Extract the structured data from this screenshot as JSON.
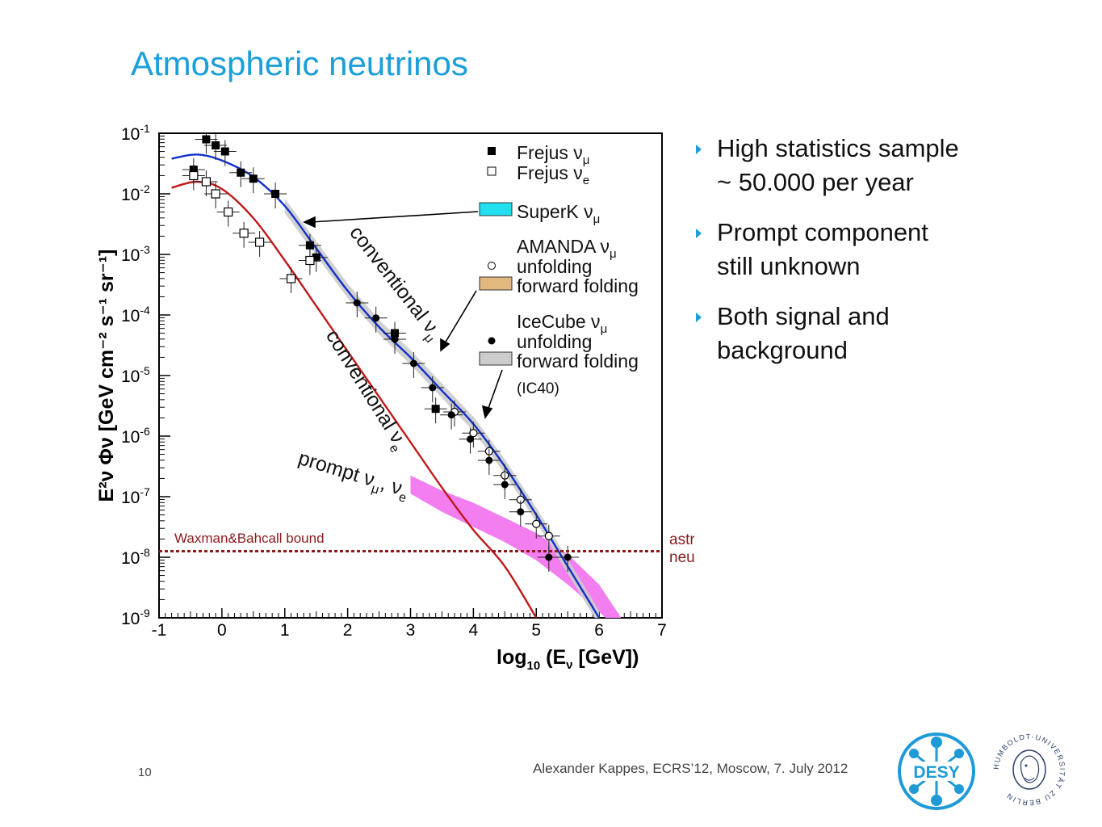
{
  "slide": {
    "title": "Atmospheric neutrinos",
    "page_number": "10",
    "footer": "Alexander Kappes, ECRS’12, Moscow, 7. July 2012",
    "bullets": [
      {
        "lines": [
          "High statistics sample",
          "~ 50.000 per year"
        ]
      },
      {
        "lines": [
          "Prompt component",
          "still unknown"
        ]
      },
      {
        "lines": [
          "Both signal and",
          "background"
        ]
      }
    ],
    "logos": [
      {
        "name": "DESY",
        "text": "DESY"
      },
      {
        "name": "Humboldt-Universität zu Berlin",
        "text": "HUMBOLDT-UNIVERSITÄT ZU BERLIN"
      }
    ]
  },
  "chart_data": {
    "type": "scatter",
    "xlabel_prefix": "log",
    "xlabel_sub": "10",
    "xlabel_main": " (E",
    "xlabel_nu": "ν",
    "xlabel_suffix": " [GeV])",
    "ylabel": "E²ν Φν [GeV cm⁻² s⁻¹ sr⁻¹]",
    "xlim": [
      -1,
      7
    ],
    "ylim_log10": [
      -9,
      -1
    ],
    "x_ticks": [
      -1,
      0,
      1,
      2,
      3,
      4,
      5,
      6,
      7
    ],
    "x_tick_labels": [
      "-1",
      "0",
      "1",
      "2",
      "3",
      "4",
      "5",
      "6",
      "7"
    ],
    "y_ticks": [
      -1,
      -2,
      -3,
      -4,
      -5,
      -6,
      -7,
      -8,
      -9
    ],
    "y_tick_base": "10",
    "y_tick_exponents": [
      "-1",
      "-2",
      "-3",
      "-4",
      "-5",
      "-6",
      "-7",
      "-8",
      "-9"
    ],
    "legend": [
      {
        "label": "Frejus ν",
        "sub": "μ",
        "marker": "filled-square"
      },
      {
        "label": "Frejus ν",
        "sub": "e",
        "marker": "open-square"
      },
      {
        "label": "SuperK ν",
        "sub": "μ",
        "marker": "band",
        "color": "#22e0f0"
      },
      {
        "label": "AMANDA ν",
        "sub": "μ",
        "marker": "none"
      },
      {
        "label": "unfolding",
        "sub": "",
        "marker": "open-circle"
      },
      {
        "label": "forward folding",
        "sub": "",
        "marker": "band",
        "color": "#e0b880"
      },
      {
        "label": "IceCube ν",
        "sub": "μ",
        "marker": "none"
      },
      {
        "label": "unfolding",
        "sub": "",
        "marker": "filled-circle"
      },
      {
        "label": "forward folding",
        "sub": "",
        "marker": "band",
        "color": "#cccccc"
      },
      {
        "label": "(IC40)",
        "sub": "",
        "marker": "none"
      }
    ],
    "annotations": {
      "conv_mu": "conventional ν",
      "conv_mu_sub": "μ",
      "conv_e": "conventional ν",
      "conv_e_sub": "e",
      "prompt": "prompt ν",
      "prompt_sub1": "μ",
      "prompt_mid": ", ν",
      "prompt_sub2": "e",
      "wb_label": "Waxman&Bahcall bound",
      "astro_label_1": "astrophysical",
      "astro_label_2": "neutrinos"
    },
    "waxman_bahcall_log10": -7.9,
    "colors": {
      "nu_mu_curve": "#1230c8",
      "nu_e_curve": "#c01818",
      "prompt_band": "#f27ef0",
      "wb_line": "#8b1a1a",
      "superk_band": "#22e0f0",
      "amanda_band": "#e0b880",
      "icecube_band": "#cccccc"
    },
    "curves": {
      "conventional_nu_mu": [
        [
          -0.8,
          -1.42
        ],
        [
          -0.4,
          -1.35
        ],
        [
          0,
          -1.45
        ],
        [
          0.5,
          -1.72
        ],
        [
          1,
          -2.2
        ],
        [
          1.5,
          -2.9
        ],
        [
          2,
          -3.6
        ],
        [
          2.5,
          -4.2
        ],
        [
          3,
          -4.7
        ],
        [
          3.5,
          -5.25
        ],
        [
          4,
          -5.8
        ],
        [
          4.5,
          -6.5
        ],
        [
          5,
          -7.3
        ],
        [
          5.5,
          -8.15
        ],
        [
          6,
          -9.0
        ]
      ],
      "conventional_nu_e": [
        [
          -0.8,
          -1.9
        ],
        [
          -0.4,
          -1.8
        ],
        [
          0,
          -1.92
        ],
        [
          0.5,
          -2.4
        ],
        [
          1,
          -3.1
        ],
        [
          1.5,
          -3.85
        ],
        [
          2,
          -4.6
        ],
        [
          2.5,
          -5.35
        ],
        [
          3,
          -6.1
        ],
        [
          3.5,
          -6.85
        ],
        [
          4,
          -7.55
        ],
        [
          4.5,
          -8.15
        ],
        [
          5,
          -9.0
        ]
      ],
      "prompt_band_upper": [
        [
          3,
          -6.65
        ],
        [
          3.5,
          -6.9
        ],
        [
          4,
          -7.1
        ],
        [
          4.5,
          -7.35
        ],
        [
          5,
          -7.6
        ],
        [
          5.5,
          -7.95
        ],
        [
          6,
          -8.45
        ],
        [
          6.35,
          -9.0
        ]
      ],
      "prompt_band_lower": [
        [
          3,
          -6.95
        ],
        [
          3.5,
          -7.25
        ],
        [
          4,
          -7.5
        ],
        [
          4.5,
          -7.75
        ],
        [
          5,
          -8.05
        ],
        [
          5.5,
          -8.45
        ],
        [
          6,
          -8.9
        ],
        [
          6.1,
          -9.0
        ]
      ]
    },
    "series": [
      {
        "name": "Frejus ν_μ",
        "marker": "filled-square",
        "x": [
          -0.45,
          -0.25,
          -0.1,
          0.05,
          0.3,
          0.5,
          0.85,
          1.4,
          1.5,
          2.75,
          3.4
        ],
        "y": [
          -1.6,
          -1.1,
          -1.2,
          -1.3,
          -1.65,
          -1.75,
          -2.0,
          -2.85,
          -3.05,
          -4.3,
          -5.55
        ]
      },
      {
        "name": "Frejus ν_e",
        "marker": "open-square",
        "x": [
          -0.45,
          -0.25,
          -0.1,
          0.1,
          0.35,
          0.6,
          1.1,
          1.4
        ],
        "y": [
          -1.7,
          -1.8,
          -2.0,
          -2.3,
          -2.65,
          -2.8,
          -3.4,
          -3.1
        ]
      },
      {
        "name": "AMANDA unfolding",
        "marker": "open-circle",
        "x": [
          3.7,
          4.0,
          4.25,
          4.5,
          4.75,
          5.0,
          5.2
        ],
        "y": [
          -5.6,
          -5.95,
          -6.25,
          -6.65,
          -7.05,
          -7.45,
          -7.65
        ]
      },
      {
        "name": "IceCube unfolding",
        "marker": "filled-circle",
        "x": [
          2.15,
          2.45,
          2.75,
          3.05,
          3.35,
          3.65,
          3.95,
          4.25,
          4.5,
          4.75,
          5.2,
          5.5
        ],
        "y": [
          -3.8,
          -4.05,
          -4.4,
          -4.8,
          -5.2,
          -5.65,
          -6.05,
          -6.4,
          -6.8,
          -7.25,
          -8.0,
          -8.0
        ]
      }
    ]
  }
}
